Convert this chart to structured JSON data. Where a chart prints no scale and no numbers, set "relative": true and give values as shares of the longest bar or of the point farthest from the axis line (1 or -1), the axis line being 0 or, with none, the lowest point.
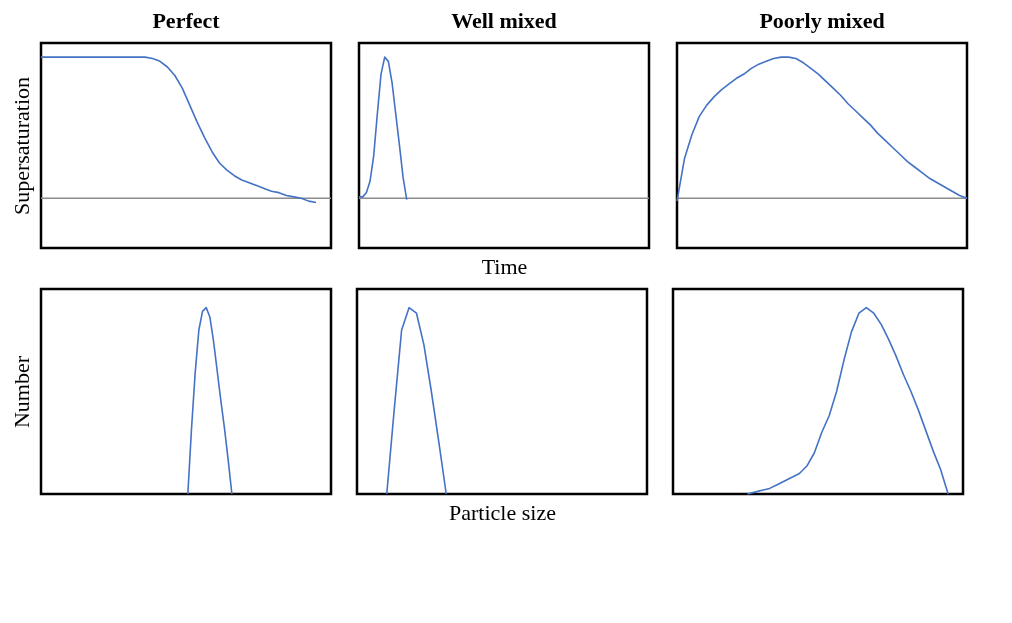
{
  "chart_data": [
    {
      "type": "line",
      "title": "Perfect",
      "ylabel": "Supersaturation",
      "relative": true,
      "tick_labels": false,
      "grid": false,
      "categories": [
        null,
        null,
        null,
        null,
        null,
        null,
        null,
        null,
        null,
        null,
        null,
        null,
        null,
        null,
        null,
        null,
        null,
        null,
        null,
        null,
        null,
        null,
        null,
        null,
        null,
        null,
        null,
        null,
        null,
        null,
        null,
        null,
        null,
        null,
        null,
        null,
        null,
        null,
        null,
        null
      ],
      "series": [
        {
          "color": "#4472c4",
          "values": [
            1.0,
            1.0,
            1.0,
            1.0,
            1.0,
            1.0,
            1.0,
            1.0,
            1.0,
            1.0,
            1.0,
            1.0,
            1.0,
            1.0,
            1.0,
            0.99,
            0.97,
            0.93,
            0.87,
            0.78,
            0.66,
            0.54,
            0.43,
            0.33,
            0.25,
            0.2,
            0.16,
            0.13,
            0.11,
            0.09,
            0.07,
            0.05,
            0.04,
            0.02,
            0.01,
            0.0,
            -0.02,
            -0.03,
            null,
            null
          ]
        }
      ]
    },
    {
      "type": "line",
      "title": "Well mixed",
      "xlabel": "Time",
      "relative": true,
      "tick_labels": false,
      "grid": false,
      "categories": [
        null,
        null,
        null,
        null,
        null,
        null,
        null,
        null,
        null,
        null,
        null,
        null,
        null,
        null,
        null,
        null,
        null,
        null,
        null,
        null,
        null,
        null,
        null,
        null,
        null,
        null,
        null,
        null,
        null,
        null,
        null,
        null,
        null,
        null,
        null,
        null,
        null,
        null,
        null,
        null,
        null,
        null,
        null,
        null,
        null,
        null,
        null,
        null,
        null,
        null,
        null,
        null,
        null,
        null,
        null,
        null,
        null,
        null,
        null,
        null,
        null,
        null,
        null,
        null,
        null,
        null,
        null,
        null,
        null,
        null,
        null,
        null,
        null,
        null,
        null,
        null,
        null,
        null,
        null,
        null
      ],
      "series": [
        {
          "color": "#4472c4",
          "values": [
            0.01,
            0.01,
            0.04,
            0.12,
            0.3,
            0.6,
            0.88,
            1.0,
            0.97,
            0.82,
            0.6,
            0.38,
            0.15,
            -0.01,
            null,
            null,
            null,
            null,
            null,
            null,
            null,
            null,
            null,
            null,
            null,
            null,
            null,
            null,
            null,
            null,
            null,
            null,
            null,
            null,
            null,
            null,
            null,
            null,
            null,
            null,
            null,
            null,
            null,
            null,
            null,
            null,
            null,
            null,
            null,
            null,
            null,
            null,
            null,
            null,
            null,
            null,
            null,
            null,
            null,
            null,
            null,
            null,
            null,
            null,
            null,
            null,
            null,
            null,
            null,
            null,
            null,
            null,
            null,
            null,
            null,
            null,
            null,
            null,
            null,
            null
          ]
        }
      ]
    },
    {
      "type": "line",
      "title": "Poorly mixed",
      "relative": true,
      "tick_labels": false,
      "grid": false,
      "categories": [
        null,
        null,
        null,
        null,
        null,
        null,
        null,
        null,
        null,
        null,
        null,
        null,
        null,
        null,
        null,
        null,
        null,
        null,
        null,
        null,
        null,
        null,
        null,
        null,
        null,
        null,
        null,
        null,
        null,
        null,
        null,
        null,
        null,
        null,
        null,
        null,
        null,
        null,
        null,
        null
      ],
      "series": [
        {
          "color": "#4472c4",
          "values": [
            -0.02,
            0.28,
            0.45,
            0.58,
            0.66,
            0.72,
            0.77,
            0.81,
            0.85,
            0.88,
            0.92,
            0.95,
            0.97,
            0.99,
            1.0,
            1.0,
            0.99,
            0.96,
            0.92,
            0.88,
            0.83,
            0.78,
            0.73,
            0.67,
            0.62,
            0.57,
            0.52,
            0.46,
            0.41,
            0.36,
            0.31,
            0.26,
            0.22,
            0.18,
            0.14,
            0.11,
            0.08,
            0.05,
            0.02,
            0.0
          ]
        }
      ]
    },
    {
      "type": "line",
      "ylabel": "Number",
      "relative": true,
      "tick_labels": false,
      "grid": false,
      "categories": [
        null,
        null,
        null,
        null,
        null,
        null,
        null,
        null,
        null,
        null,
        null,
        null,
        null,
        null,
        null,
        null,
        null,
        null,
        null,
        null,
        null,
        null,
        null,
        null,
        null,
        null,
        null,
        null,
        null,
        null,
        null,
        null,
        null,
        null,
        null,
        null,
        null,
        null,
        null,
        null,
        null,
        null,
        null,
        null,
        null,
        null,
        null,
        null,
        null,
        null,
        null,
        null,
        null,
        null,
        null,
        null,
        null,
        null,
        null,
        null,
        null,
        null,
        null,
        null,
        null,
        null,
        null,
        null,
        null,
        null,
        null,
        null,
        null,
        null,
        null,
        null,
        null,
        null,
        null,
        null
      ],
      "series": [
        {
          "color": "#4472c4",
          "values": [
            null,
            null,
            null,
            null,
            null,
            null,
            null,
            null,
            null,
            null,
            null,
            null,
            null,
            null,
            null,
            null,
            null,
            null,
            null,
            null,
            null,
            null,
            null,
            null,
            null,
            null,
            null,
            null,
            null,
            null,
            null,
            null,
            null,
            null,
            null,
            null,
            null,
            null,
            null,
            null,
            0.0,
            0.35,
            0.65,
            0.88,
            0.98,
            1.0,
            0.95,
            0.82,
            0.66,
            0.5,
            0.35,
            0.18,
            0.0,
            null,
            null,
            null,
            null,
            null,
            null,
            null,
            null,
            null,
            null,
            null,
            null,
            null,
            null,
            null,
            null,
            null,
            null,
            null,
            null,
            null,
            null,
            null,
            null,
            null,
            null,
            null
          ]
        }
      ]
    },
    {
      "type": "line",
      "xlabel": "Particle size",
      "relative": true,
      "tick_labels": false,
      "grid": false,
      "categories": [
        null,
        null,
        null,
        null,
        null,
        null,
        null,
        null,
        null,
        null,
        null,
        null,
        null,
        null,
        null,
        null,
        null,
        null,
        null,
        null,
        null,
        null,
        null,
        null,
        null,
        null,
        null,
        null,
        null,
        null,
        null,
        null,
        null,
        null,
        null,
        null,
        null,
        null,
        null,
        null
      ],
      "series": [
        {
          "color": "#4472c4",
          "values": [
            null,
            null,
            null,
            null,
            0.0,
            0.45,
            0.88,
            1.0,
            0.97,
            0.8,
            0.55,
            0.28,
            0.0,
            null,
            null,
            null,
            null,
            null,
            null,
            null,
            null,
            null,
            null,
            null,
            null,
            null,
            null,
            null,
            null,
            null,
            null,
            null,
            null,
            null,
            null,
            null,
            null,
            null,
            null,
            null
          ]
        }
      ]
    },
    {
      "type": "line",
      "relative": true,
      "tick_labels": false,
      "grid": false,
      "categories": [
        null,
        null,
        null,
        null,
        null,
        null,
        null,
        null,
        null,
        null,
        null,
        null,
        null,
        null,
        null,
        null,
        null,
        null,
        null,
        null,
        null,
        null,
        null,
        null,
        null,
        null,
        null,
        null,
        null,
        null,
        null,
        null,
        null,
        null,
        null,
        null,
        null,
        null,
        null,
        null
      ],
      "series": [
        {
          "color": "#4472c4",
          "values": [
            null,
            null,
            null,
            null,
            null,
            null,
            null,
            null,
            null,
            null,
            0.0,
            0.01,
            0.02,
            0.03,
            0.05,
            0.07,
            0.09,
            0.11,
            0.15,
            0.22,
            0.33,
            0.42,
            0.55,
            0.72,
            0.87,
            0.97,
            1.0,
            0.97,
            0.91,
            0.83,
            0.74,
            0.64,
            0.55,
            0.45,
            0.34,
            0.23,
            0.13,
            0.0,
            null,
            null
          ]
        }
      ]
    }
  ]
}
